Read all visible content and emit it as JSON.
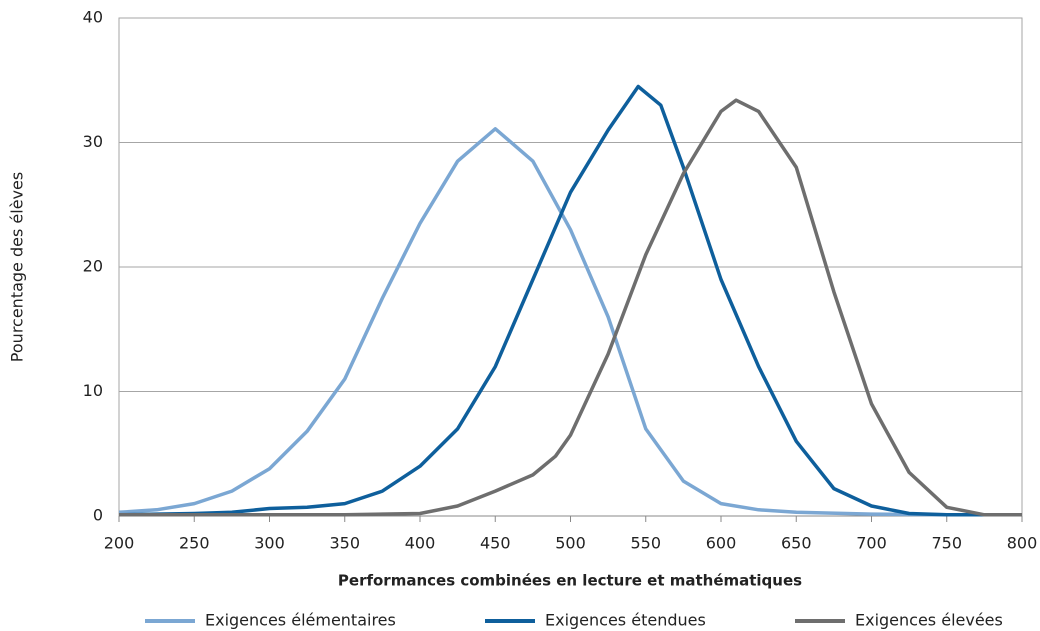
{
  "chart_data": {
    "type": "line",
    "x_label": "Performances combinées en lecture et mathématiques",
    "y_label": "Pourcentage des élèves",
    "xlim": [
      200,
      800
    ],
    "xticks": [
      200,
      250,
      300,
      350,
      400,
      450,
      500,
      550,
      600,
      650,
      700,
      750,
      800
    ],
    "ylim": [
      0,
      40
    ],
    "yticks": [
      0,
      10,
      20,
      30,
      40
    ],
    "grid": true,
    "series": [
      {
        "name": "Exigences élémentaires",
        "color": "#7ba7d3",
        "x": [
          200,
          225,
          250,
          275,
          300,
          325,
          350,
          375,
          400,
          425,
          450,
          475,
          500,
          525,
          550,
          575,
          600,
          625,
          650,
          700,
          750,
          800
        ],
        "values": [
          0.3,
          0.5,
          1.0,
          2.0,
          3.8,
          6.8,
          11,
          17.5,
          23.5,
          28.5,
          31.1,
          28.5,
          23,
          16,
          7,
          2.8,
          1.0,
          0.5,
          0.3,
          0.15,
          0.1,
          0.1
        ]
      },
      {
        "name": "Exigences étendues",
        "color": "#0e5f9c",
        "x": [
          200,
          250,
          275,
          300,
          325,
          350,
          375,
          400,
          425,
          450,
          475,
          500,
          525,
          545,
          560,
          575,
          600,
          625,
          650,
          675,
          700,
          725,
          750,
          800
        ],
        "values": [
          0.1,
          0.2,
          0.3,
          0.6,
          0.7,
          1.0,
          2.0,
          4.0,
          7.0,
          12,
          19,
          26,
          31,
          34.5,
          33,
          28,
          19,
          12,
          6,
          2.2,
          0.8,
          0.2,
          0.1,
          0.1
        ]
      },
      {
        "name": "Exigences élevées",
        "color": "#6e6e6e",
        "x": [
          200,
          300,
          350,
          400,
          425,
          450,
          475,
          490,
          500,
          525,
          550,
          575,
          600,
          610,
          625,
          650,
          675,
          700,
          725,
          750,
          775,
          800
        ],
        "values": [
          0.1,
          0.1,
          0.1,
          0.2,
          0.8,
          2.0,
          3.3,
          4.8,
          6.5,
          13,
          21,
          27.5,
          32.5,
          33.4,
          32.5,
          28,
          18,
          9,
          3.5,
          0.7,
          0.1,
          0.1
        ]
      }
    ]
  }
}
